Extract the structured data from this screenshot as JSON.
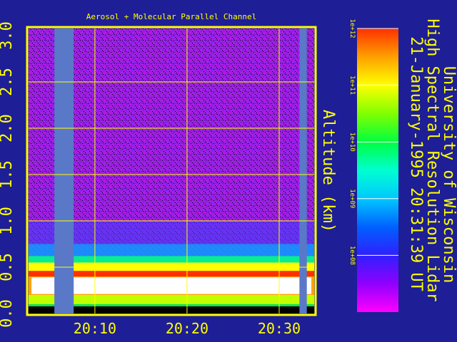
{
  "chart_data": {
    "type": "heatmap",
    "title": "Aerosol + Molecular Parallel Channel",
    "ylabel": "Altitude (km)",
    "y_ticks": [
      "0.0",
      "0.5",
      "1.0",
      "1.5",
      "2.0",
      "2.5",
      "3.0"
    ],
    "ylim": [
      0,
      3
    ],
    "x_ticks": [
      "20:10",
      "20:20",
      "20:30"
    ],
    "x_tick_minutes": [
      10,
      20,
      30
    ],
    "xlim_minutes": [
      2.8,
      33.8
    ],
    "gap_minutes": [
      [
        5.6,
        7.7
      ],
      [
        32.2,
        33.0
      ]
    ],
    "cloud_base_km": 0.3,
    "cloud_top_km": 0.65,
    "colorbar": {
      "labels": [
        "1e+12",
        "1e+11",
        "1e+10",
        "1e+09",
        "1e+08"
      ],
      "values": [
        1000000000000.0,
        100000000000.0,
        10000000000.0,
        1000000000.0,
        100000000.0
      ],
      "scale": "log",
      "colors": [
        "#ff00ff",
        "#8020ff",
        "#3020ff",
        "#00b0ff",
        "#00ffff",
        "#00ff80",
        "#40ff00",
        "#c0ff00",
        "#ffff00",
        "#ffb000",
        "#ff5000",
        "#ff2000"
      ]
    },
    "grid": true,
    "frame_color": "#ffff00"
  },
  "side_title": {
    "line1": "University of Wisconsin",
    "line2": "High Spectral Resolution Lidar",
    "line3": "21-January-1995 20:31:39 UT"
  }
}
